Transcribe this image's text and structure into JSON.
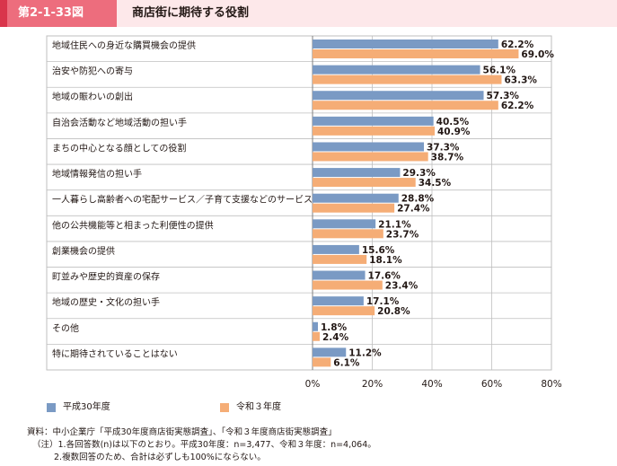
{
  "figure": {
    "number": "第2-1-33図",
    "title": "商店街に期待する役割"
  },
  "colors": {
    "series1": "#7a9ac4",
    "series2": "#f5ad76",
    "badge": "#ed6d7d",
    "band": "#fde8ea",
    "grid": "#bfbfbf"
  },
  "chart_data": {
    "type": "bar",
    "orientation": "horizontal",
    "categories": [
      "地域住民への身近な購買機会の提供",
      "治安や防犯への寄与",
      "地域の賑わいの創出",
      "自治会活動など地域活動の担い手",
      "まちの中心となる顔としての役割",
      "地域情報発信の担い手",
      "一人暮らし高齢者への宅配サービス／子育て支援などのサービス",
      "他の公共機能等と相まった利便性の提供",
      "創業機会の提供",
      "町並みや歴史的資産の保存",
      "地域の歴史・文化の担い手",
      "その他",
      "特に期待されていることはない"
    ],
    "series": [
      {
        "name": "平成30年度",
        "values": [
          62.2,
          56.1,
          57.3,
          40.5,
          37.3,
          29.3,
          28.8,
          21.1,
          15.6,
          17.6,
          17.1,
          1.8,
          11.2
        ],
        "labels": [
          "62.2%",
          "56.1%",
          "57.3%",
          "40.5%",
          "37.3%",
          "29.3%",
          "28.8%",
          "21.1%",
          "15.6%",
          "17.6%",
          "17.1%",
          "1.8%",
          "11.2%"
        ]
      },
      {
        "name": "令和３年度",
        "values": [
          69.0,
          63.3,
          62.2,
          40.9,
          38.7,
          34.5,
          27.4,
          23.7,
          18.1,
          23.4,
          20.8,
          2.4,
          6.1
        ],
        "labels": [
          "69.0%",
          "63.3%",
          "62.2%",
          "40.9%",
          "38.7%",
          "34.5%",
          "27.4%",
          "23.7%",
          "18.1%",
          "23.4%",
          "20.8%",
          "2.4%",
          "6.1%"
        ]
      }
    ],
    "xlim": [
      0,
      80
    ],
    "ticks": [
      0,
      20,
      40,
      60,
      80
    ],
    "tick_labels": [
      "0%",
      "20%",
      "40%",
      "60%",
      "80%"
    ],
    "grid": true,
    "legend_position": "bottom-left"
  },
  "notes": [
    "資料：中小企業庁「平成30年度商店街実態調査」、「令和３年度商店街実態調査」",
    "（注）1.各回答数(n)は以下のとおり。平成30年度：n=3,477、令和３年度：n=4,064。",
    "2.複数回答のため、合計は必ずしも100%にならない。"
  ]
}
